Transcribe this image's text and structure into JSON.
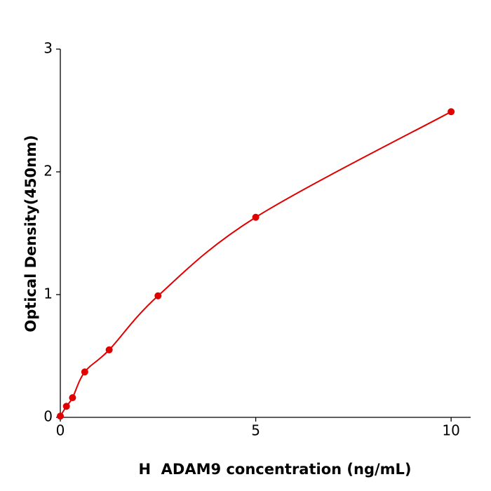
{
  "chart_data": {
    "type": "scatter",
    "x_label": "H  ADAM9 concentration (ng/mL)",
    "y_label": "Optical Density(450nm)",
    "x": [
      0,
      0.156,
      0.3125,
      0.625,
      1.25,
      2.5,
      5,
      10
    ],
    "values": [
      0.01,
      0.09,
      0.16,
      0.37,
      0.55,
      0.99,
      1.63,
      2.49
    ],
    "color": "#e00000",
    "curve": true,
    "xlim": [
      0,
      10.5
    ],
    "xticks": [
      0,
      5,
      10
    ],
    "ylim": [
      0,
      3
    ],
    "yticks": [
      0,
      1,
      2,
      3
    ],
    "grid": false
  }
}
